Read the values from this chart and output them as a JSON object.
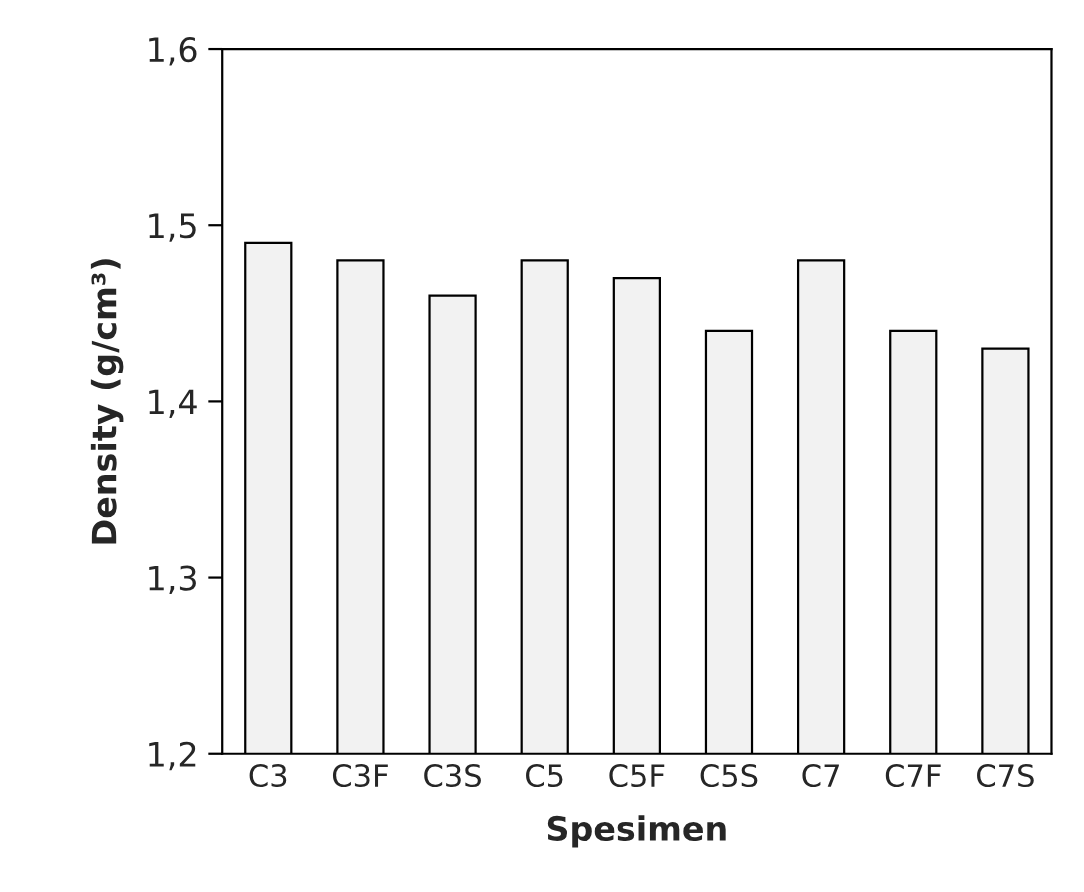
{
  "chart_data": {
    "type": "bar",
    "xlabel": "Spesimen",
    "ylabel": "Density (g/cm³)",
    "categories": [
      "C3",
      "C3F",
      "C3S",
      "C5",
      "C5F",
      "C5S",
      "C7",
      "C7F",
      "C7S"
    ],
    "values": [
      1.49,
      1.48,
      1.46,
      1.48,
      1.47,
      1.44,
      1.48,
      1.44,
      1.43
    ],
    "color": "#f2f2f2",
    "ylim": [
      1.2,
      1.6
    ],
    "yticks": [
      {
        "value": 1.2,
        "label": "1,2"
      },
      {
        "value": 1.3,
        "label": "1,3"
      },
      {
        "value": 1.4,
        "label": "1,4"
      },
      {
        "value": 1.5,
        "label": "1,5"
      },
      {
        "value": 1.6,
        "label": "1,6"
      }
    ],
    "grid": false,
    "legend": false
  }
}
